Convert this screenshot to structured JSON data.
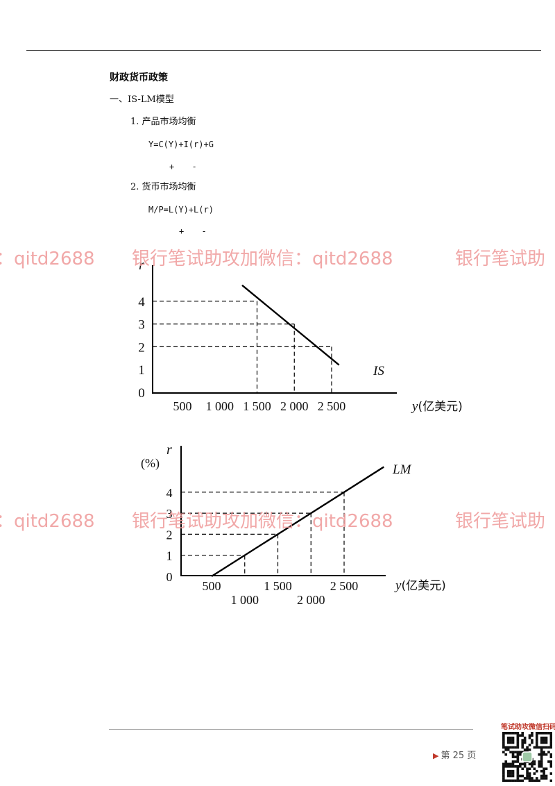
{
  "doc": {
    "title": "财政货币政策",
    "section": "一、IS-LM模型",
    "item1": "1. 产品市场均衡",
    "eq1": "Y=C(Y)+I(r)+G",
    "signs1": "+ -",
    "item2": "2. 货币市场均衡",
    "eq2": "M/P=L(Y)+L(r)",
    "signs2": "+ -"
  },
  "watermark": {
    "text": "银行笔试助攻加微信：qitd2688",
    "left_fragment": "：qitd2688",
    "right_fragment": "银行笔试助"
  },
  "footer": {
    "page": "第 25 页",
    "qr_label": "笔试助攻微信扫码↓"
  },
  "chart_data": [
    {
      "type": "line",
      "ylabel": "r",
      "xlabel": "y (亿美元)",
      "x_ticks": [
        "500",
        "1 000",
        "1 500",
        "2 000",
        "2 500"
      ],
      "y_ticks": [
        "0",
        "1",
        "2",
        "3",
        "4"
      ],
      "series": [
        {
          "name": "IS",
          "x": [
            1300,
            2600
          ],
          "y": [
            4.7,
            1.2
          ]
        }
      ],
      "reference_points": [
        {
          "x": 1500,
          "y": 4
        },
        {
          "x": 2000,
          "y": 3
        },
        {
          "x": 2500,
          "y": 2
        }
      ]
    },
    {
      "type": "line",
      "ylabel": "r",
      "yunit": "(%)",
      "xlabel": "y (亿美元)",
      "x_ticks": [
        "500",
        "1 000",
        "1 500",
        "2 000",
        "2 500"
      ],
      "y_ticks": [
        "0",
        "1",
        "2",
        "3",
        "4"
      ],
      "series": [
        {
          "name": "LM",
          "x": [
            500,
            3100
          ],
          "y": [
            0,
            5.2
          ]
        }
      ],
      "reference_points": [
        {
          "x": 1000,
          "y": 1
        },
        {
          "x": 1500,
          "y": 2
        },
        {
          "x": 2000,
          "y": 3
        },
        {
          "x": 2500,
          "y": 4
        }
      ]
    }
  ]
}
